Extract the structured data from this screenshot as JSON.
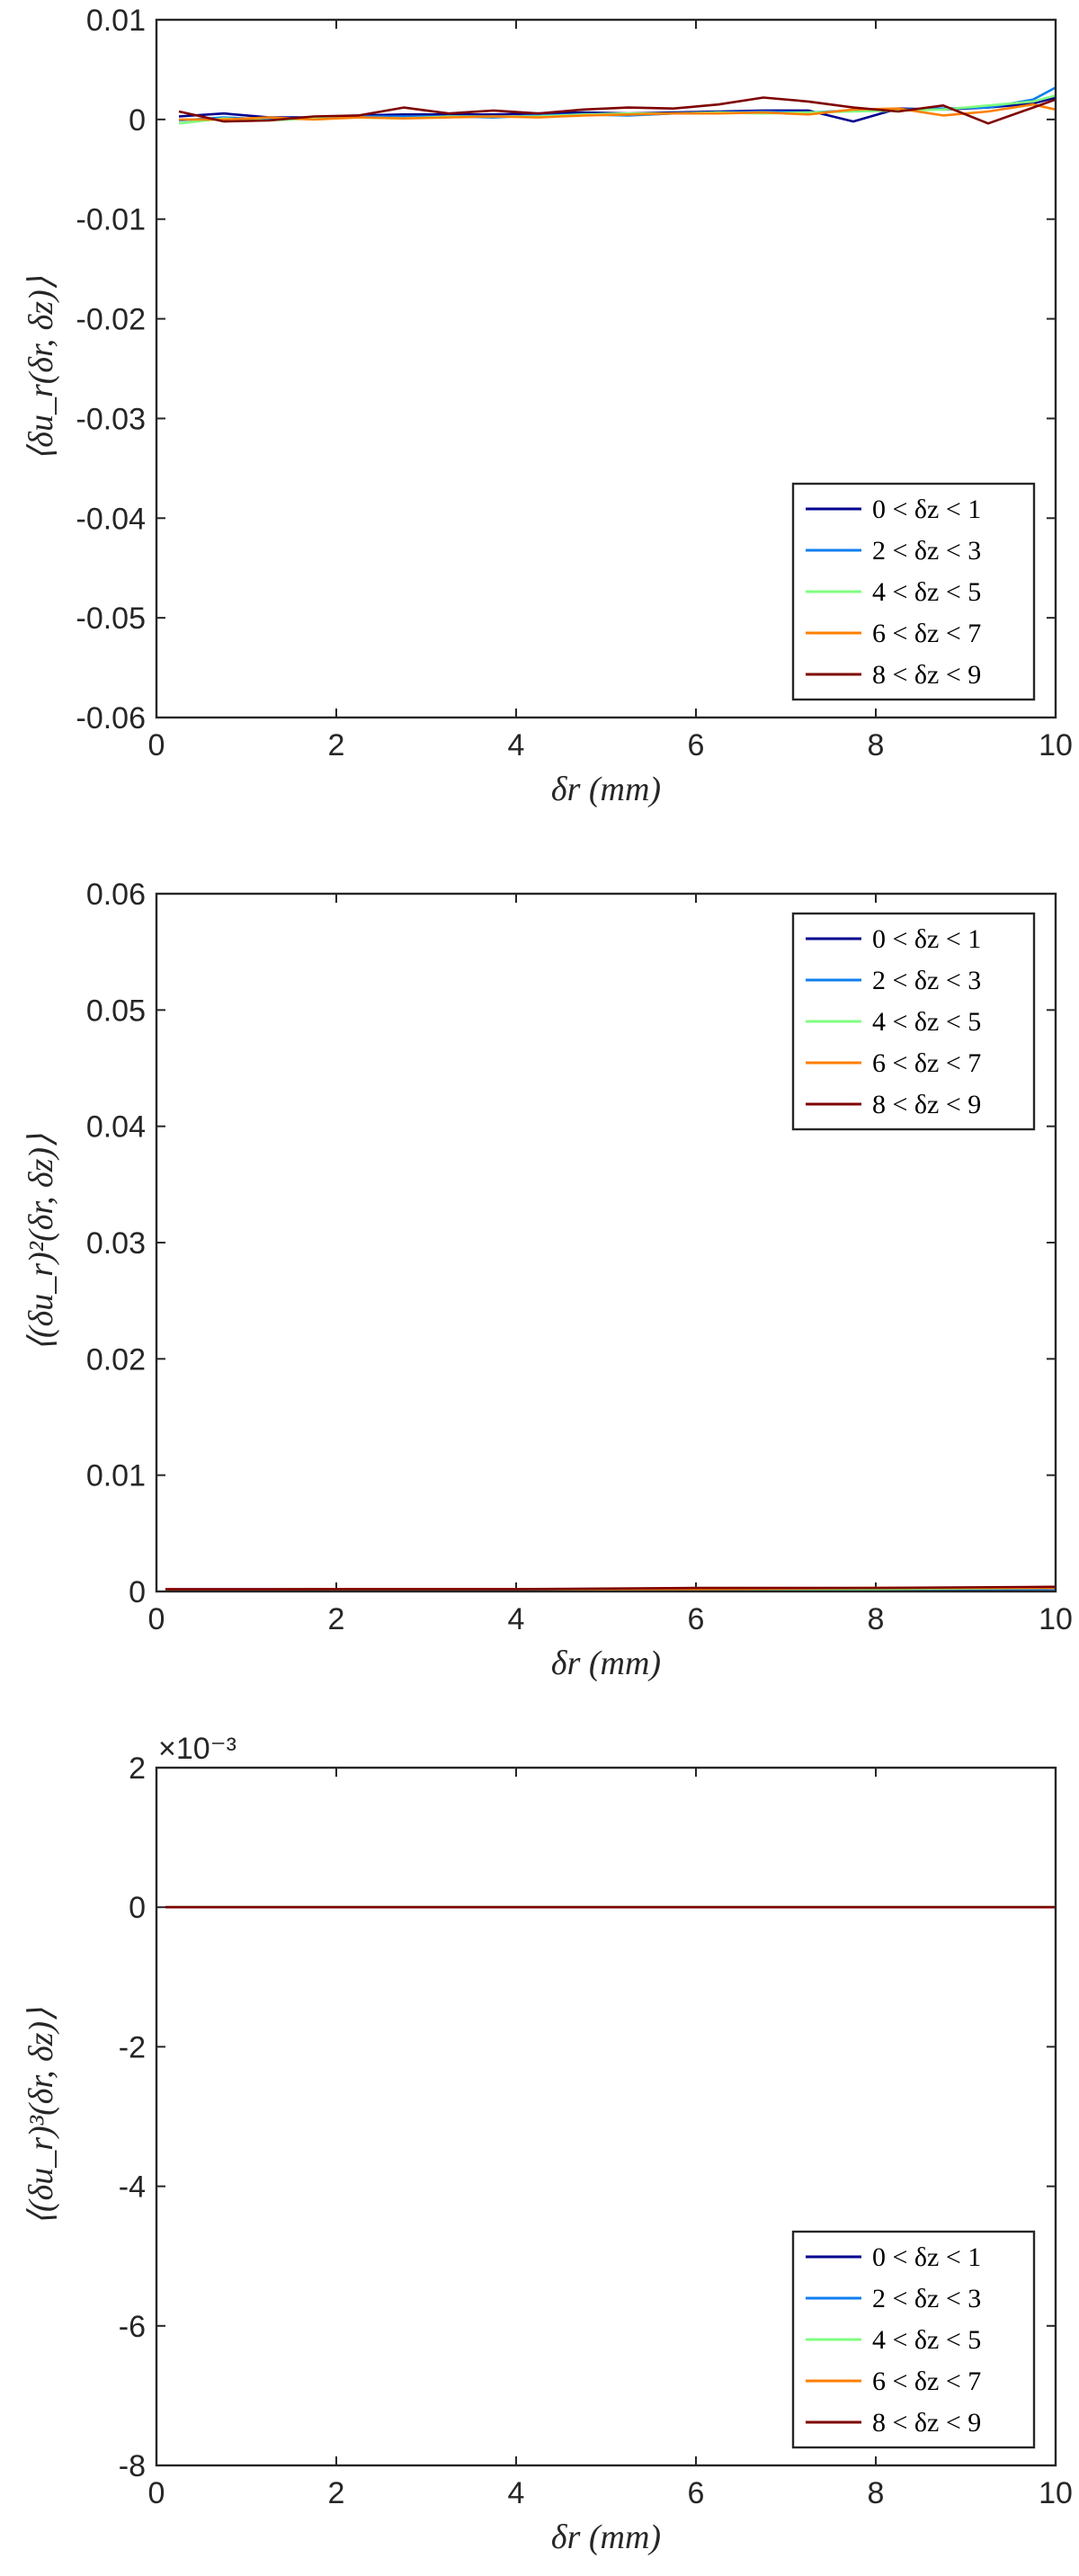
{
  "legend_entries": [
    {
      "label": "0 < δz < 1",
      "color": "#00008f"
    },
    {
      "label": "2 < δz < 3",
      "color": "#0f7fef"
    },
    {
      "label": "4 < δz < 5",
      "color": "#7fff7f"
    },
    {
      "label": "6 < δz < 7",
      "color": "#ff7f00"
    },
    {
      "label": "8 < δz < 9",
      "color": "#7f0000"
    }
  ],
  "chart_data": [
    {
      "type": "line",
      "ylabel": "⟨δu_r(δr, δz)⟩",
      "xlabel": "δr (mm)",
      "xlim": [
        0,
        10
      ],
      "ylim": [
        -0.06,
        0.01
      ],
      "xticks": [
        "0",
        "2",
        "4",
        "6",
        "8",
        "10"
      ],
      "yticks": [
        "0.01",
        "0",
        "-0.01",
        "-0.02",
        "-0.03",
        "-0.04",
        "-0.05",
        "-0.06"
      ],
      "legend_placement": "bottom-right",
      "x": [
        0.25,
        0.75,
        1.25,
        1.75,
        2.25,
        2.75,
        3.25,
        3.75,
        4.25,
        4.75,
        5.25,
        5.75,
        6.25,
        6.75,
        7.25,
        7.75,
        8.25,
        8.75,
        9.25,
        9.75,
        10
      ],
      "series": [
        {
          "name": "0 < δz < 1",
          "color": "#00008f",
          "values": [
            0.0003,
            0.0006,
            0.0002,
            0.0002,
            0.0004,
            0.0005,
            0.0005,
            0.0005,
            0.0006,
            0.0007,
            0.0006,
            0.0007,
            0.0008,
            0.0009,
            0.0009,
            -0.0002,
            0.0011,
            0.001,
            0.0012,
            0.0016,
            0.0022
          ]
        },
        {
          "name": "2 < δz < 3",
          "color": "#0f7fef",
          "values": [
            -0.0001,
            0.0002,
            0.0,
            0.0002,
            0.0003,
            0.0003,
            0.0003,
            0.0002,
            0.0004,
            0.0005,
            0.0004,
            0.0006,
            0.0007,
            0.0008,
            0.0007,
            0.0009,
            0.001,
            0.0011,
            0.0012,
            0.002,
            0.0032
          ]
        },
        {
          "name": "4 < δz < 5",
          "color": "#7fff7f",
          "values": [
            -0.0004,
            0.0001,
            -0.0001,
            0.0001,
            0.0002,
            0.0001,
            0.0003,
            0.0003,
            0.0003,
            0.0005,
            0.0006,
            0.0006,
            0.0007,
            0.0006,
            0.0007,
            0.0008,
            0.0009,
            0.001,
            0.0014,
            0.0018,
            0.0024
          ]
        },
        {
          "name": "6 < δz < 7",
          "color": "#ff7f00",
          "values": [
            0.0,
            0.0,
            0.0002,
            0.0,
            0.0002,
            0.0001,
            0.0002,
            0.0003,
            0.0002,
            0.0004,
            0.0005,
            0.0006,
            0.0006,
            0.0007,
            0.0005,
            0.001,
            0.0011,
            0.0004,
            0.0008,
            0.0015,
            0.001
          ]
        },
        {
          "name": "8 < δz < 9",
          "color": "#7f0000",
          "values": [
            0.0008,
            -0.0002,
            -0.0001,
            0.0003,
            0.0004,
            0.0012,
            0.0006,
            0.0009,
            0.0006,
            0.001,
            0.0012,
            0.0011,
            0.0015,
            0.0022,
            0.0018,
            0.0012,
            0.0008,
            0.0014,
            -0.0004,
            0.0012,
            0.002
          ]
        }
      ]
    },
    {
      "type": "line",
      "ylabel": "⟨(δu_r)²(δr, δz)⟩",
      "xlabel": "δr (mm)",
      "xlim": [
        0,
        10
      ],
      "ylim": [
        0,
        0.06
      ],
      "xticks": [
        "0",
        "2",
        "4",
        "6",
        "8",
        "10"
      ],
      "yticks": [
        "0.06",
        "0.05",
        "0.04",
        "0.03",
        "0.02",
        "0.01",
        "0"
      ],
      "legend_placement": "top-right",
      "x": [
        0.1,
        2,
        4,
        6,
        8,
        10
      ],
      "series": [
        {
          "name": "0 < δz < 1",
          "color": "#00008f",
          "values": [
            0.0001,
            0.0001,
            0.0001,
            0.0001,
            0.0001,
            0.0002
          ]
        },
        {
          "name": "2 < δz < 3",
          "color": "#0f7fef",
          "values": [
            0.0001,
            0.0001,
            0.0001,
            0.0002,
            0.0002,
            0.0002
          ]
        },
        {
          "name": "4 < δz < 5",
          "color": "#7fff7f",
          "values": [
            0.0001,
            0.0001,
            0.0002,
            0.0002,
            0.0002,
            0.0003
          ]
        },
        {
          "name": "6 < δz < 7",
          "color": "#ff7f00",
          "values": [
            0.0001,
            0.0002,
            0.0002,
            0.0002,
            0.0003,
            0.0003
          ]
        },
        {
          "name": "8 < δz < 9",
          "color": "#7f0000",
          "values": [
            0.0002,
            0.0002,
            0.0002,
            0.0003,
            0.0003,
            0.0004
          ]
        }
      ]
    },
    {
      "type": "line",
      "ylabel": "⟨(δu_r)³(δr, δz)⟩",
      "xlabel": "δr (mm)",
      "xlim": [
        0,
        10
      ],
      "ylim": [
        -0.008,
        0.002
      ],
      "exponent_label": "×10⁻³",
      "xticks": [
        "0",
        "2",
        "4",
        "6",
        "8",
        "10"
      ],
      "yticks": [
        "2",
        "0",
        "-2",
        "-4",
        "-6",
        "-8"
      ],
      "legend_placement": "bottom-right",
      "x": [
        0.1,
        2,
        4,
        6,
        8,
        10
      ],
      "series": [
        {
          "name": "0 < δz < 1",
          "color": "#00008f",
          "values": [
            0,
            0,
            0,
            0,
            0,
            0
          ]
        },
        {
          "name": "2 < δz < 3",
          "color": "#0f7fef",
          "values": [
            0,
            0,
            0,
            0,
            0,
            0
          ]
        },
        {
          "name": "4 < δz < 5",
          "color": "#7fff7f",
          "values": [
            0,
            0,
            0,
            0,
            0,
            0
          ]
        },
        {
          "name": "6 < δz < 7",
          "color": "#ff7f00",
          "values": [
            0,
            0,
            0,
            0,
            0,
            0
          ]
        },
        {
          "name": "8 < δz < 9",
          "color": "#7f0000",
          "values": [
            0,
            0,
            0,
            0,
            0,
            0
          ]
        }
      ]
    }
  ]
}
